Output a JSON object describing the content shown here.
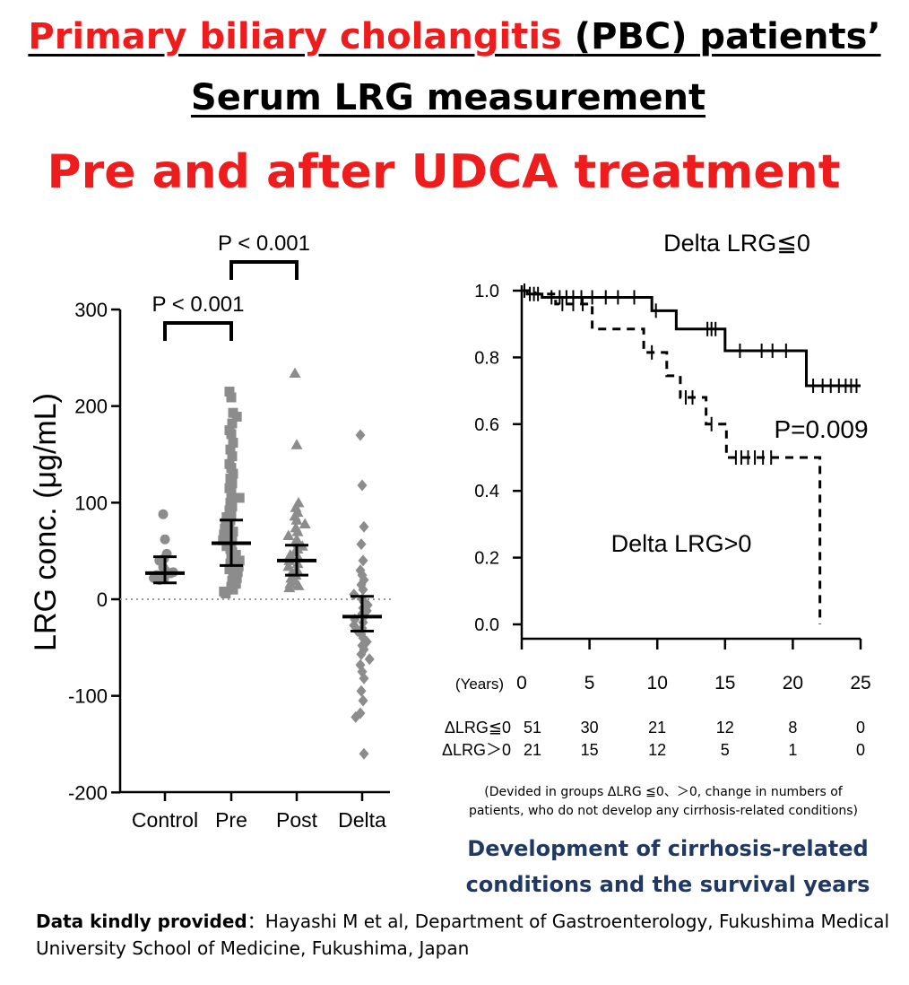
{
  "header": {
    "title_red": "Primary biliary cholangitis ",
    "title_black": "(PBC) patients’",
    "subtitle": "Serum LRG measurement",
    "subtitle2": "Pre and after UDCA treatment"
  },
  "footer": {
    "caption_line1": "(Devided in groups ΔLRG ≦0、＞0, change in numbers of",
    "caption_line2": "patients, who  do not develop any cirrhosis-related conditions)",
    "dev_title_line1": "Development of cirrhosis-related",
    "dev_title_line2": "conditions and  the survival years",
    "credit_label": "Data kindly provided",
    "credit_text": "：Hayashi M et al, Department of Gastroenterology, Fukushima Medical University School of Medicine, Fukushima, Japan"
  },
  "colors": {
    "red": "#ee1c1c",
    "navy": "#1f3864",
    "marker_gray": "#8c8c8c"
  },
  "chart_data": [
    {
      "type": "scatter",
      "ylabel": "LRG conc. (μg/mL)",
      "ylim": [
        -200,
        300
      ],
      "yticks": [
        "300",
        "200",
        "100",
        "0",
        "-100",
        "-200"
      ],
      "categories": [
        "Control",
        "Pre",
        "Post",
        "Delta"
      ],
      "markers": [
        "circle",
        "square",
        "triangle",
        "diamond"
      ],
      "means": [
        27,
        58,
        40,
        -18
      ],
      "error": [
        [
          17,
          44
        ],
        [
          35,
          82
        ],
        [
          25,
          56
        ],
        [
          -33,
          3
        ]
      ],
      "reference_line": 0,
      "annotations": [
        {
          "text": "P < 0.001",
          "from": "Control",
          "to": "Pre"
        },
        {
          "text": "P < 0.001",
          "from": "Pre",
          "to": "Post"
        }
      ],
      "points": {
        "Control": [
          88,
          62,
          47,
          42,
          40,
          33,
          30,
          28,
          27,
          26,
          25,
          24,
          22,
          21,
          20
        ],
        "Pre": [
          215,
          209,
          193,
          189,
          182,
          175,
          171,
          162,
          155,
          148,
          140,
          136,
          130,
          125,
          120,
          115,
          110,
          105,
          100,
          96,
          92,
          88,
          85,
          82,
          79,
          76,
          73,
          70,
          67,
          64,
          61,
          58,
          55,
          52,
          49,
          46,
          43,
          40,
          37,
          34,
          31,
          28,
          25,
          22,
          19,
          16,
          13,
          10,
          8,
          6
        ],
        "Post": [
          234,
          160,
          100,
          95,
          90,
          86,
          82,
          78,
          74,
          70,
          66,
          62,
          58,
          55,
          52,
          49,
          46,
          43,
          40,
          37,
          34,
          31,
          28,
          25,
          22,
          19,
          16,
          14,
          12
        ],
        "Delta": [
          170,
          118,
          75,
          57,
          40,
          30,
          25,
          20,
          15,
          10,
          5,
          0,
          -3,
          -6,
          -9,
          -12,
          -15,
          -18,
          -21,
          -24,
          -27,
          -30,
          -33,
          -36,
          -40,
          -44,
          -48,
          -52,
          -57,
          -62,
          -68,
          -75,
          -82,
          -95,
          -105,
          -118,
          -122,
          -160
        ]
      }
    },
    {
      "type": "line",
      "xlabel": "(Years)",
      "xticks": [
        "0",
        "5",
        "10",
        "15",
        "20",
        "25"
      ],
      "yticks": [
        "1.0",
        "0.8",
        "0.6",
        "0.4",
        "0.2",
        "0.0"
      ],
      "xlim": [
        0,
        25
      ],
      "ylim": [
        0,
        1
      ],
      "p_value": "P=0.009",
      "series": [
        {
          "name": "Delta LRG≦0",
          "style": "solid",
          "steps": [
            [
              0,
              1.0
            ],
            [
              0.4,
              0.99
            ],
            [
              1.5,
              0.98
            ],
            [
              9.6,
              0.94
            ],
            [
              11.4,
              0.885
            ],
            [
              15.0,
              0.82
            ],
            [
              21.0,
              0.715
            ],
            [
              25.0,
              0.715
            ]
          ],
          "censors": [
            [
              0.2,
              1.0
            ],
            [
              0.6,
              0.99
            ],
            [
              0.9,
              0.99
            ],
            [
              1.2,
              0.99
            ],
            [
              2.2,
              0.98
            ],
            [
              2.8,
              0.98
            ],
            [
              3.3,
              0.98
            ],
            [
              3.8,
              0.98
            ],
            [
              4.4,
              0.98
            ],
            [
              5.2,
              0.98
            ],
            [
              6.2,
              0.98
            ],
            [
              7.1,
              0.98
            ],
            [
              8.3,
              0.98
            ],
            [
              9.9,
              0.94
            ],
            [
              13.7,
              0.885
            ],
            [
              14.0,
              0.885
            ],
            [
              14.3,
              0.885
            ],
            [
              16.1,
              0.82
            ],
            [
              17.7,
              0.82
            ],
            [
              18.5,
              0.82
            ],
            [
              19.5,
              0.82
            ],
            [
              21.5,
              0.715
            ],
            [
              22.2,
              0.715
            ],
            [
              22.8,
              0.715
            ],
            [
              23.4,
              0.715
            ],
            [
              23.9,
              0.715
            ],
            [
              24.3,
              0.715
            ],
            [
              24.7,
              0.715
            ]
          ]
        },
        {
          "name": "Delta LRG>0",
          "style": "dashed",
          "steps": [
            [
              0,
              1.0
            ],
            [
              1.0,
              0.99
            ],
            [
              2.5,
              0.96
            ],
            [
              5.2,
              0.885
            ],
            [
              9.0,
              0.815
            ],
            [
              10.7,
              0.745
            ],
            [
              11.7,
              0.68
            ],
            [
              13.6,
              0.6
            ],
            [
              15.1,
              0.5
            ],
            [
              22.0,
              0.0
            ]
          ],
          "censors": [
            [
              3.0,
              0.96
            ],
            [
              3.8,
              0.96
            ],
            [
              4.5,
              0.96
            ],
            [
              9.6,
              0.815
            ],
            [
              12.1,
              0.68
            ],
            [
              12.6,
              0.68
            ],
            [
              14.0,
              0.6
            ],
            [
              15.8,
              0.5
            ],
            [
              16.2,
              0.5
            ],
            [
              16.7,
              0.5
            ],
            [
              17.2,
              0.5
            ],
            [
              17.8,
              0.5
            ],
            [
              18.4,
              0.5
            ]
          ]
        }
      ],
      "at_risk": [
        {
          "label": "ΔLRG≦0",
          "values": [
            "51",
            "30",
            "21",
            "12",
            "8",
            "0"
          ]
        },
        {
          "label": "ΔLRG＞0",
          "values": [
            "21",
            "15",
            "12",
            "5",
            "1",
            "0"
          ]
        }
      ]
    }
  ]
}
